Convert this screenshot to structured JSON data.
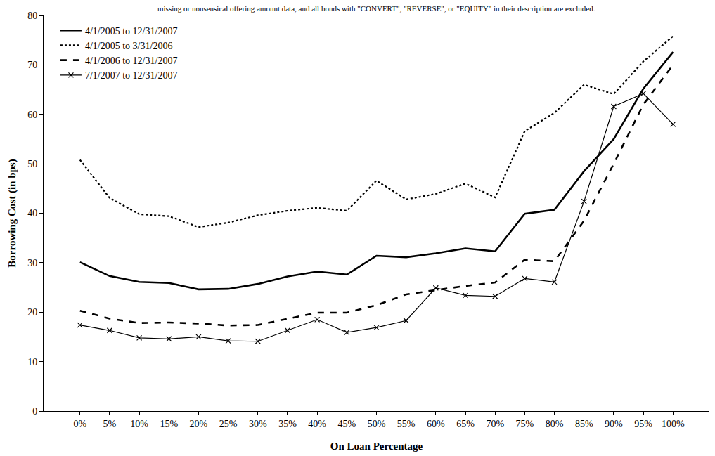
{
  "chart_data": {
    "type": "line",
    "note": "missing or nonsensical offering amount data, and all bonds with \"CONVERT\", \"REVERSE\", or \"EQUITY\" in their description are excluded.",
    "x_label": "On Loan Percentage",
    "y_label": "Borrowing Cost (in bps)",
    "categories": [
      "0%",
      "5%",
      "10%",
      "15%",
      "20%",
      "25%",
      "30%",
      "35%",
      "40%",
      "45%",
      "50%",
      "55%",
      "60%",
      "65%",
      "70%",
      "75%",
      "80%",
      "85%",
      "90%",
      "95%",
      "100%"
    ],
    "series": [
      {
        "name": "4/1/2005 to 12/31/2007",
        "color": "#000000",
        "line_style": "solid",
        "marker": "none",
        "values": [
          30.1,
          27.3,
          26.1,
          25.9,
          24.6,
          24.7,
          25.7,
          27.2,
          28.2,
          27.6,
          31.4,
          31.1,
          31.9,
          32.9,
          32.3,
          39.9,
          40.7,
          48.5,
          55.0,
          65.2,
          72.6
        ]
      },
      {
        "name": "4/1/2005 to 3/31/2006",
        "color": "#000000",
        "line_style": "dotted",
        "marker": "none",
        "values": [
          50.8,
          43.1,
          39.8,
          39.4,
          37.2,
          38.1,
          39.6,
          40.5,
          41.1,
          40.5,
          46.6,
          42.8,
          43.9,
          46.0,
          43.2,
          56.6,
          60.3,
          66.0,
          64.1,
          70.7,
          75.8
        ]
      },
      {
        "name": "4/1/2006 to 12/31/2007",
        "color": "#000000",
        "line_style": "dashed",
        "marker": "none",
        "values": [
          20.3,
          18.7,
          17.8,
          17.9,
          17.7,
          17.3,
          17.4,
          18.7,
          19.9,
          19.9,
          21.4,
          23.6,
          24.5,
          25.3,
          26.0,
          30.6,
          30.3,
          38.5,
          50.0,
          62.0,
          70.0
        ]
      },
      {
        "name": "7/1/2007 to 12/31/2007",
        "color": "#000000",
        "line_style": "thin",
        "marker": "x",
        "values": [
          17.4,
          16.3,
          14.8,
          14.6,
          15.0,
          14.2,
          14.1,
          16.3,
          18.5,
          15.9,
          16.9,
          18.3,
          24.9,
          23.4,
          23.2,
          26.8,
          26.1,
          42.4,
          61.6,
          64.2,
          58.0
        ]
      }
    ],
    "ylim": [
      0,
      80
    ],
    "yticks": [
      0,
      10,
      20,
      30,
      40,
      50,
      60,
      70,
      80
    ],
    "grid": false,
    "legend": "top left"
  }
}
